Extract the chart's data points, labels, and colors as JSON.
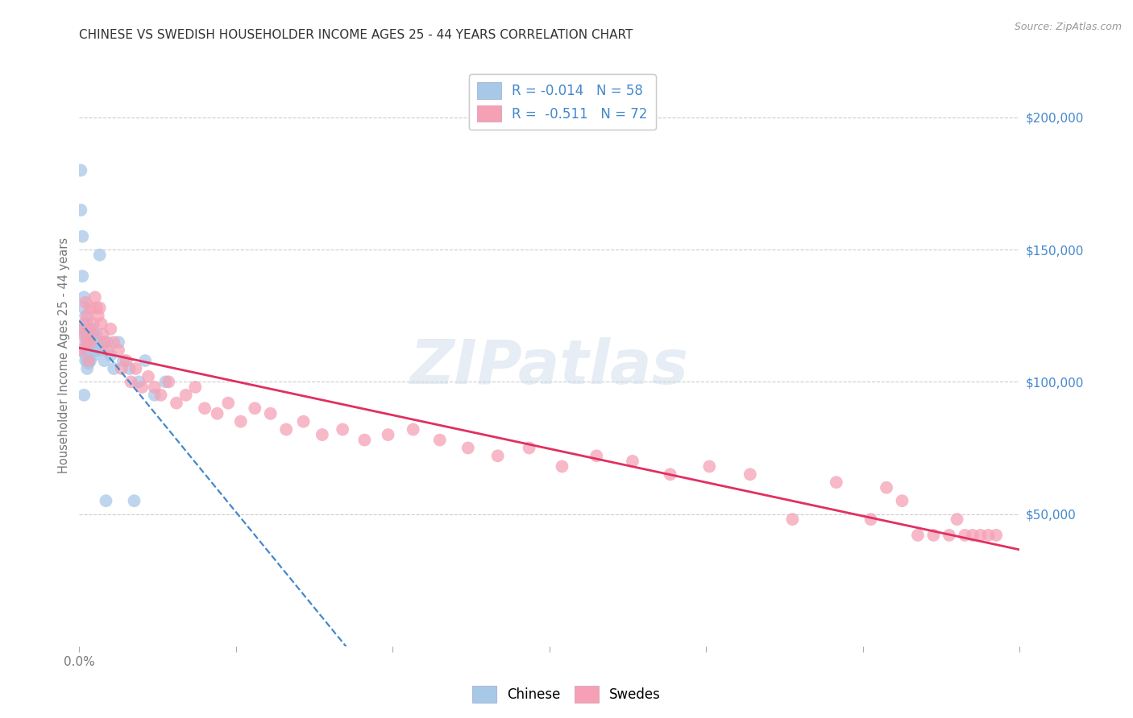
{
  "title": "CHINESE VS SWEDISH HOUSEHOLDER INCOME AGES 25 - 44 YEARS CORRELATION CHART",
  "source": "Source: ZipAtlas.com",
  "ylabel": "Householder Income Ages 25 - 44 years",
  "xlim": [
    0.0,
    0.6
  ],
  "ylim": [
    0,
    220000
  ],
  "xtick_positions": [
    0.0,
    0.1,
    0.2,
    0.3,
    0.4,
    0.5,
    0.6
  ],
  "xticklabels_shown": {
    "0.0": "0.0%"
  },
  "right_yticks": [
    50000,
    100000,
    150000,
    200000
  ],
  "right_yticklabels": [
    "$50,000",
    "$100,000",
    "$150,000",
    "$200,000"
  ],
  "watermark": "ZIPatlas",
  "chinese_R": -0.014,
  "chinese_N": 58,
  "swedes_R": -0.511,
  "swedes_N": 72,
  "chinese_color": "#a8c8e8",
  "swedes_color": "#f5a0b5",
  "chinese_line_color": "#4488cc",
  "swedes_line_color": "#e03060",
  "legend_border_color": "#cccccc",
  "grid_color": "#cccccc",
  "tick_label_color": "#777777",
  "right_label_color": "#4488cc",
  "title_color": "#333333",
  "source_color": "#999999",
  "watermark_color": "#c8d8e8",
  "chinese_x": [
    0.001,
    0.001,
    0.002,
    0.002,
    0.003,
    0.003,
    0.003,
    0.003,
    0.004,
    0.004,
    0.004,
    0.004,
    0.004,
    0.004,
    0.005,
    0.005,
    0.005,
    0.005,
    0.005,
    0.005,
    0.005,
    0.006,
    0.006,
    0.006,
    0.006,
    0.006,
    0.006,
    0.007,
    0.007,
    0.007,
    0.007,
    0.008,
    0.008,
    0.008,
    0.009,
    0.009,
    0.009,
    0.01,
    0.01,
    0.011,
    0.011,
    0.012,
    0.013,
    0.014,
    0.015,
    0.016,
    0.017,
    0.018,
    0.02,
    0.022,
    0.025,
    0.028,
    0.032,
    0.035,
    0.038,
    0.042,
    0.048,
    0.055
  ],
  "chinese_y": [
    180000,
    165000,
    155000,
    140000,
    132000,
    128000,
    120000,
    95000,
    125000,
    118000,
    115000,
    112000,
    110000,
    108000,
    122000,
    118000,
    115000,
    113000,
    110000,
    108000,
    105000,
    120000,
    118000,
    115000,
    112000,
    110000,
    107000,
    118000,
    115000,
    112000,
    108000,
    120000,
    115000,
    112000,
    118000,
    115000,
    110000,
    115000,
    112000,
    118000,
    112000,
    115000,
    148000,
    112000,
    115000,
    108000,
    55000,
    115000,
    110000,
    105000,
    115000,
    108000,
    105000,
    55000,
    100000,
    108000,
    95000,
    100000
  ],
  "swedes_x": [
    0.001,
    0.002,
    0.003,
    0.004,
    0.005,
    0.005,
    0.006,
    0.006,
    0.007,
    0.007,
    0.008,
    0.009,
    0.01,
    0.011,
    0.012,
    0.013,
    0.014,
    0.015,
    0.016,
    0.018,
    0.02,
    0.022,
    0.025,
    0.027,
    0.03,
    0.033,
    0.036,
    0.04,
    0.044,
    0.048,
    0.052,
    0.057,
    0.062,
    0.068,
    0.074,
    0.08,
    0.088,
    0.095,
    0.103,
    0.112,
    0.122,
    0.132,
    0.143,
    0.155,
    0.168,
    0.182,
    0.197,
    0.213,
    0.23,
    0.248,
    0.267,
    0.287,
    0.308,
    0.33,
    0.353,
    0.377,
    0.402,
    0.428,
    0.455,
    0.483,
    0.505,
    0.515,
    0.525,
    0.535,
    0.545,
    0.555,
    0.56,
    0.565,
    0.57,
    0.575,
    0.58,
    0.585
  ],
  "swedes_y": [
    112000,
    118000,
    122000,
    130000,
    125000,
    115000,
    120000,
    108000,
    128000,
    115000,
    118000,
    122000,
    132000,
    128000,
    125000,
    128000,
    122000,
    118000,
    115000,
    112000,
    120000,
    115000,
    112000,
    105000,
    108000,
    100000,
    105000,
    98000,
    102000,
    98000,
    95000,
    100000,
    92000,
    95000,
    98000,
    90000,
    88000,
    92000,
    85000,
    90000,
    88000,
    82000,
    85000,
    80000,
    82000,
    78000,
    80000,
    82000,
    78000,
    75000,
    72000,
    75000,
    68000,
    72000,
    70000,
    65000,
    68000,
    65000,
    48000,
    62000,
    48000,
    60000,
    55000,
    42000,
    42000,
    42000,
    48000,
    42000,
    42000,
    42000,
    42000,
    42000
  ]
}
